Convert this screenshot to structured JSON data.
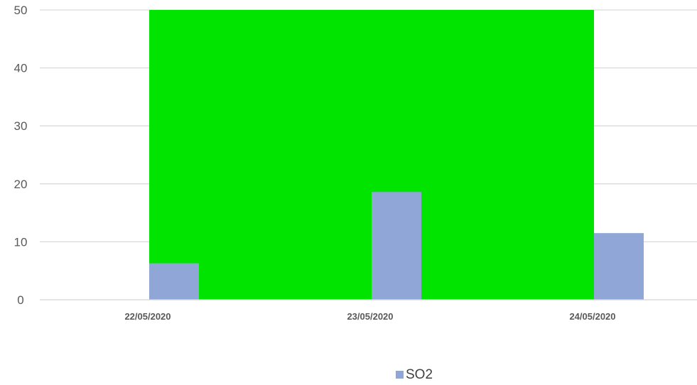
{
  "chart_data": {
    "type": "bar",
    "categories": [
      "22/05/2020",
      "23/05/2020",
      "24/05/2020"
    ],
    "series": [
      {
        "name": "SO2",
        "values": [
          6.3,
          18.6,
          11.5
        ],
        "color": "#8FA6D6"
      }
    ],
    "background_band": {
      "from_category": 0,
      "to_category": 2,
      "y_from": 0,
      "y_to": 50,
      "color": "#00E400"
    },
    "ylim": [
      0,
      50
    ],
    "yticks": [
      0,
      10,
      20,
      30,
      40,
      50
    ],
    "grid": true,
    "legend": "bottom-center",
    "gridline_color": "#D9D9D9"
  }
}
